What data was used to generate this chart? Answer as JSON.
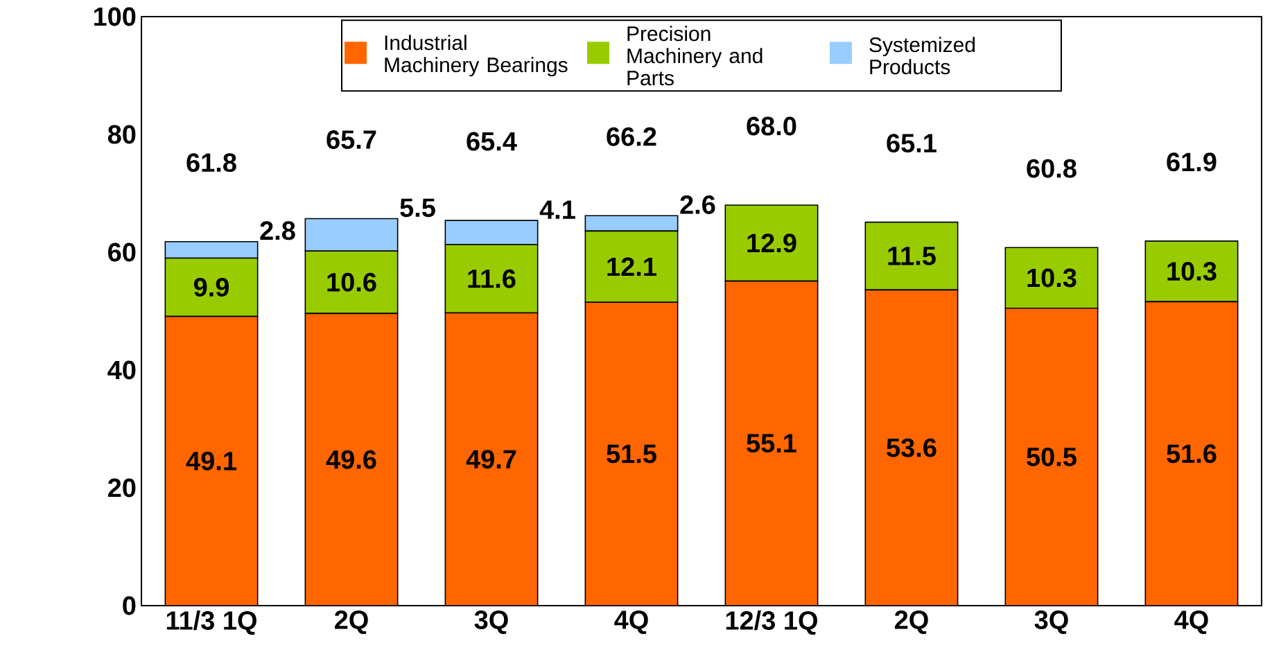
{
  "chart_data": {
    "type": "bar",
    "stacked": true,
    "categories": [
      "11/3 1Q",
      "2Q",
      "3Q",
      "4Q",
      "12/3 1Q",
      "2Q",
      "3Q",
      "4Q"
    ],
    "series": [
      {
        "name": "Industrial Machinery Bearings",
        "color": "#ff6600",
        "values": [
          49.1,
          49.6,
          49.7,
          51.5,
          55.1,
          53.6,
          50.5,
          51.6
        ]
      },
      {
        "name": "Precision Machinery and Parts",
        "color": "#99cc00",
        "values": [
          9.9,
          10.6,
          11.6,
          12.1,
          12.9,
          11.5,
          10.3,
          10.3
        ]
      },
      {
        "name": "Systemized Products",
        "color": "#99ccff",
        "values": [
          2.8,
          5.5,
          4.1,
          2.6,
          null,
          null,
          null,
          null
        ]
      }
    ],
    "data_labels": true,
    "totals": [
      "61.8",
      "65.7",
      "65.4",
      "66.2",
      "68.0",
      "65.1",
      "60.8",
      "61.9"
    ],
    "ylim": [
      0,
      100
    ],
    "yticks": [
      0,
      20,
      40,
      60,
      80,
      100
    ],
    "grid": false,
    "legend": "top"
  }
}
